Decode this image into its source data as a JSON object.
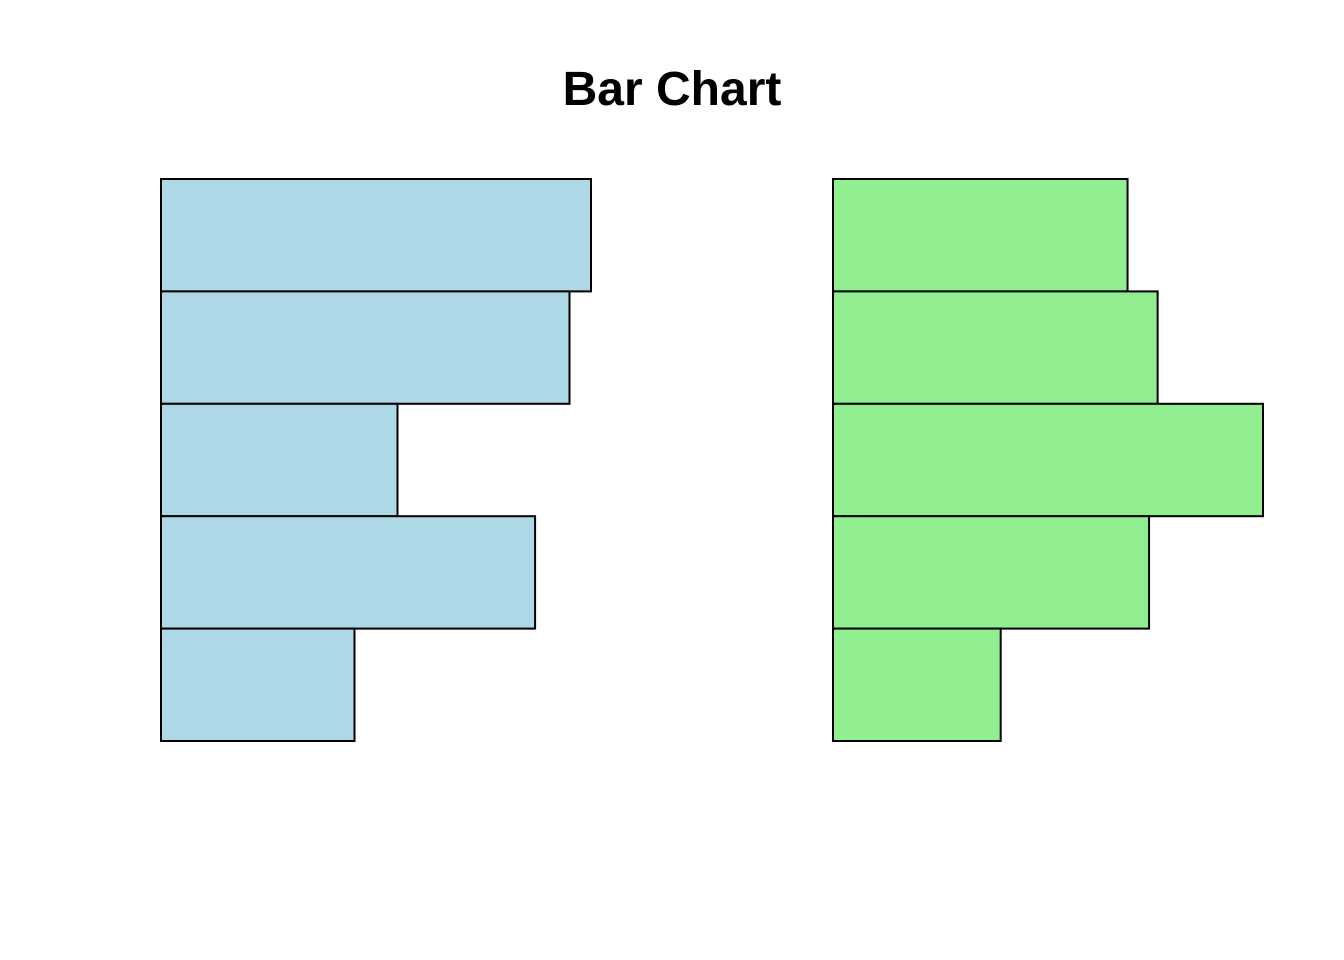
{
  "chart_data": {
    "type": "bar",
    "orientation": "horizontal",
    "title": "Bar Chart",
    "xlabel": "",
    "ylabel": "",
    "axes_visible": false,
    "grid": false,
    "legend": "none",
    "xlim": [
      0,
      10
    ],
    "panels": [
      {
        "color": "#add8e6",
        "values": [
          10,
          9.5,
          5.5,
          8.7,
          4.5
        ]
      },
      {
        "color": "#90ee90",
        "values": [
          6.85,
          7.55,
          10,
          7.35,
          3.9
        ]
      }
    ]
  }
}
